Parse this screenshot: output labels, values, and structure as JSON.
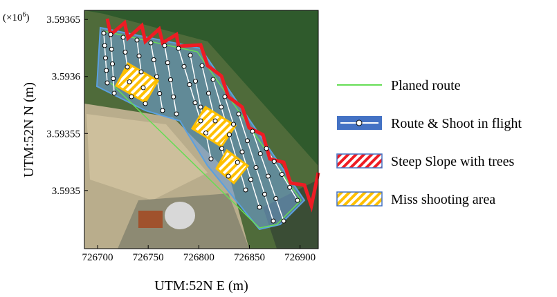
{
  "chart_data": {
    "type": "map",
    "xlabel": "UTM:52N E (m)",
    "ylabel": "UTM:52N N (m)",
    "y_offset_text": {
      "base": "(×10",
      "exponent": "6",
      "close": ")"
    },
    "xlim": [
      726687,
      726918
    ],
    "ylim": [
      3.593449,
      3.593658
    ],
    "xticks": [
      726700,
      726750,
      726800,
      726850,
      726900
    ],
    "yticks": [
      3.5935,
      3.59355,
      3.5936,
      3.59365
    ],
    "legend": [
      {
        "name": "Planed route",
        "color": "#66dd55"
      },
      {
        "name": "Route & Shoot in flight",
        "color": "#4472c4"
      },
      {
        "name": "Steep Slope with trees",
        "color": "#ee1c24"
      },
      {
        "name": "Miss shooting area",
        "color": "#ffc000"
      }
    ]
  }
}
